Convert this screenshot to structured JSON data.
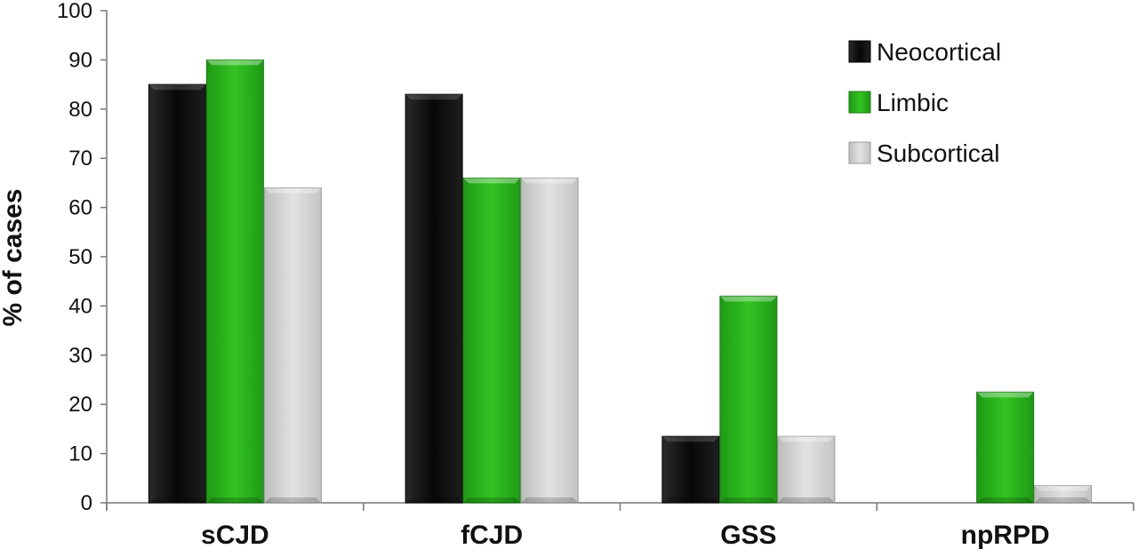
{
  "chart_data": {
    "type": "bar",
    "title": "",
    "xlabel": "",
    "ylabel": "% of cases",
    "categories": [
      "sCJD",
      "fCJD",
      "GSS",
      "npRPD"
    ],
    "series": [
      {
        "name": "Neocortical",
        "values": [
          85,
          83,
          13.5,
          0
        ],
        "color": "#111111"
      },
      {
        "name": "Limbic",
        "values": [
          90,
          66,
          42,
          22.5
        ],
        "color": "#2db51f"
      },
      {
        "name": "Subcortical",
        "values": [
          64,
          66,
          13.5,
          3.5
        ],
        "color": "#d6d6d6"
      }
    ],
    "ylim": [
      0,
      100
    ],
    "yticks": [
      0,
      10,
      20,
      30,
      40,
      50,
      60,
      70,
      80,
      90,
      100
    ],
    "grid": false,
    "legend_position": "top-right"
  }
}
